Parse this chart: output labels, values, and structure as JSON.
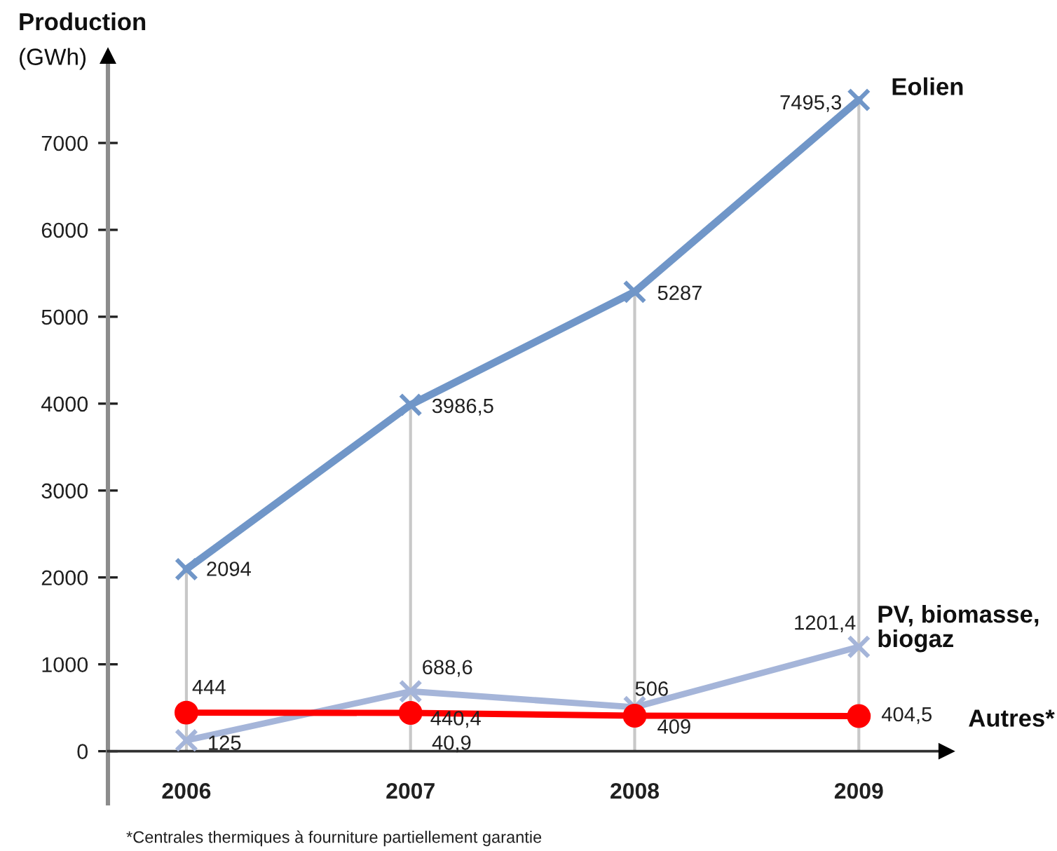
{
  "chart_data": {
    "type": "line",
    "categories": [
      "2006",
      "2007",
      "2008",
      "2009"
    ],
    "ylabel": "Production\n(GWh)",
    "ylim": [
      -600,
      8000
    ],
    "yticks": [
      0,
      1000,
      2000,
      3000,
      4000,
      5000,
      6000,
      7000
    ],
    "grid": "x",
    "series": [
      {
        "name": "Eolien",
        "color": "#7096c8",
        "marker": "cross",
        "values": [
          2094,
          3986.5,
          5287,
          7495.3
        ],
        "value_labels": [
          "2094",
          "3986,5",
          "5287",
          "7495,3"
        ]
      },
      {
        "name": "PV, biomasse,\nbiogaz",
        "color": "#a5b5d9",
        "marker": "cross",
        "values": [
          125,
          688.6,
          506,
          1201.4
        ],
        "value_labels": [
          "125",
          "688,6",
          "506",
          "1201,4"
        ]
      },
      {
        "name": "Autres*",
        "color": "#ff0000",
        "marker": "circle",
        "values": [
          444,
          440.4,
          409,
          404.5
        ],
        "value_labels": [
          "444",
          "440,4",
          "409",
          "404,5"
        ]
      }
    ],
    "annotations": [
      "40,9",
      "*Centrales thermiques à fourniture partiellement garantie"
    ]
  }
}
